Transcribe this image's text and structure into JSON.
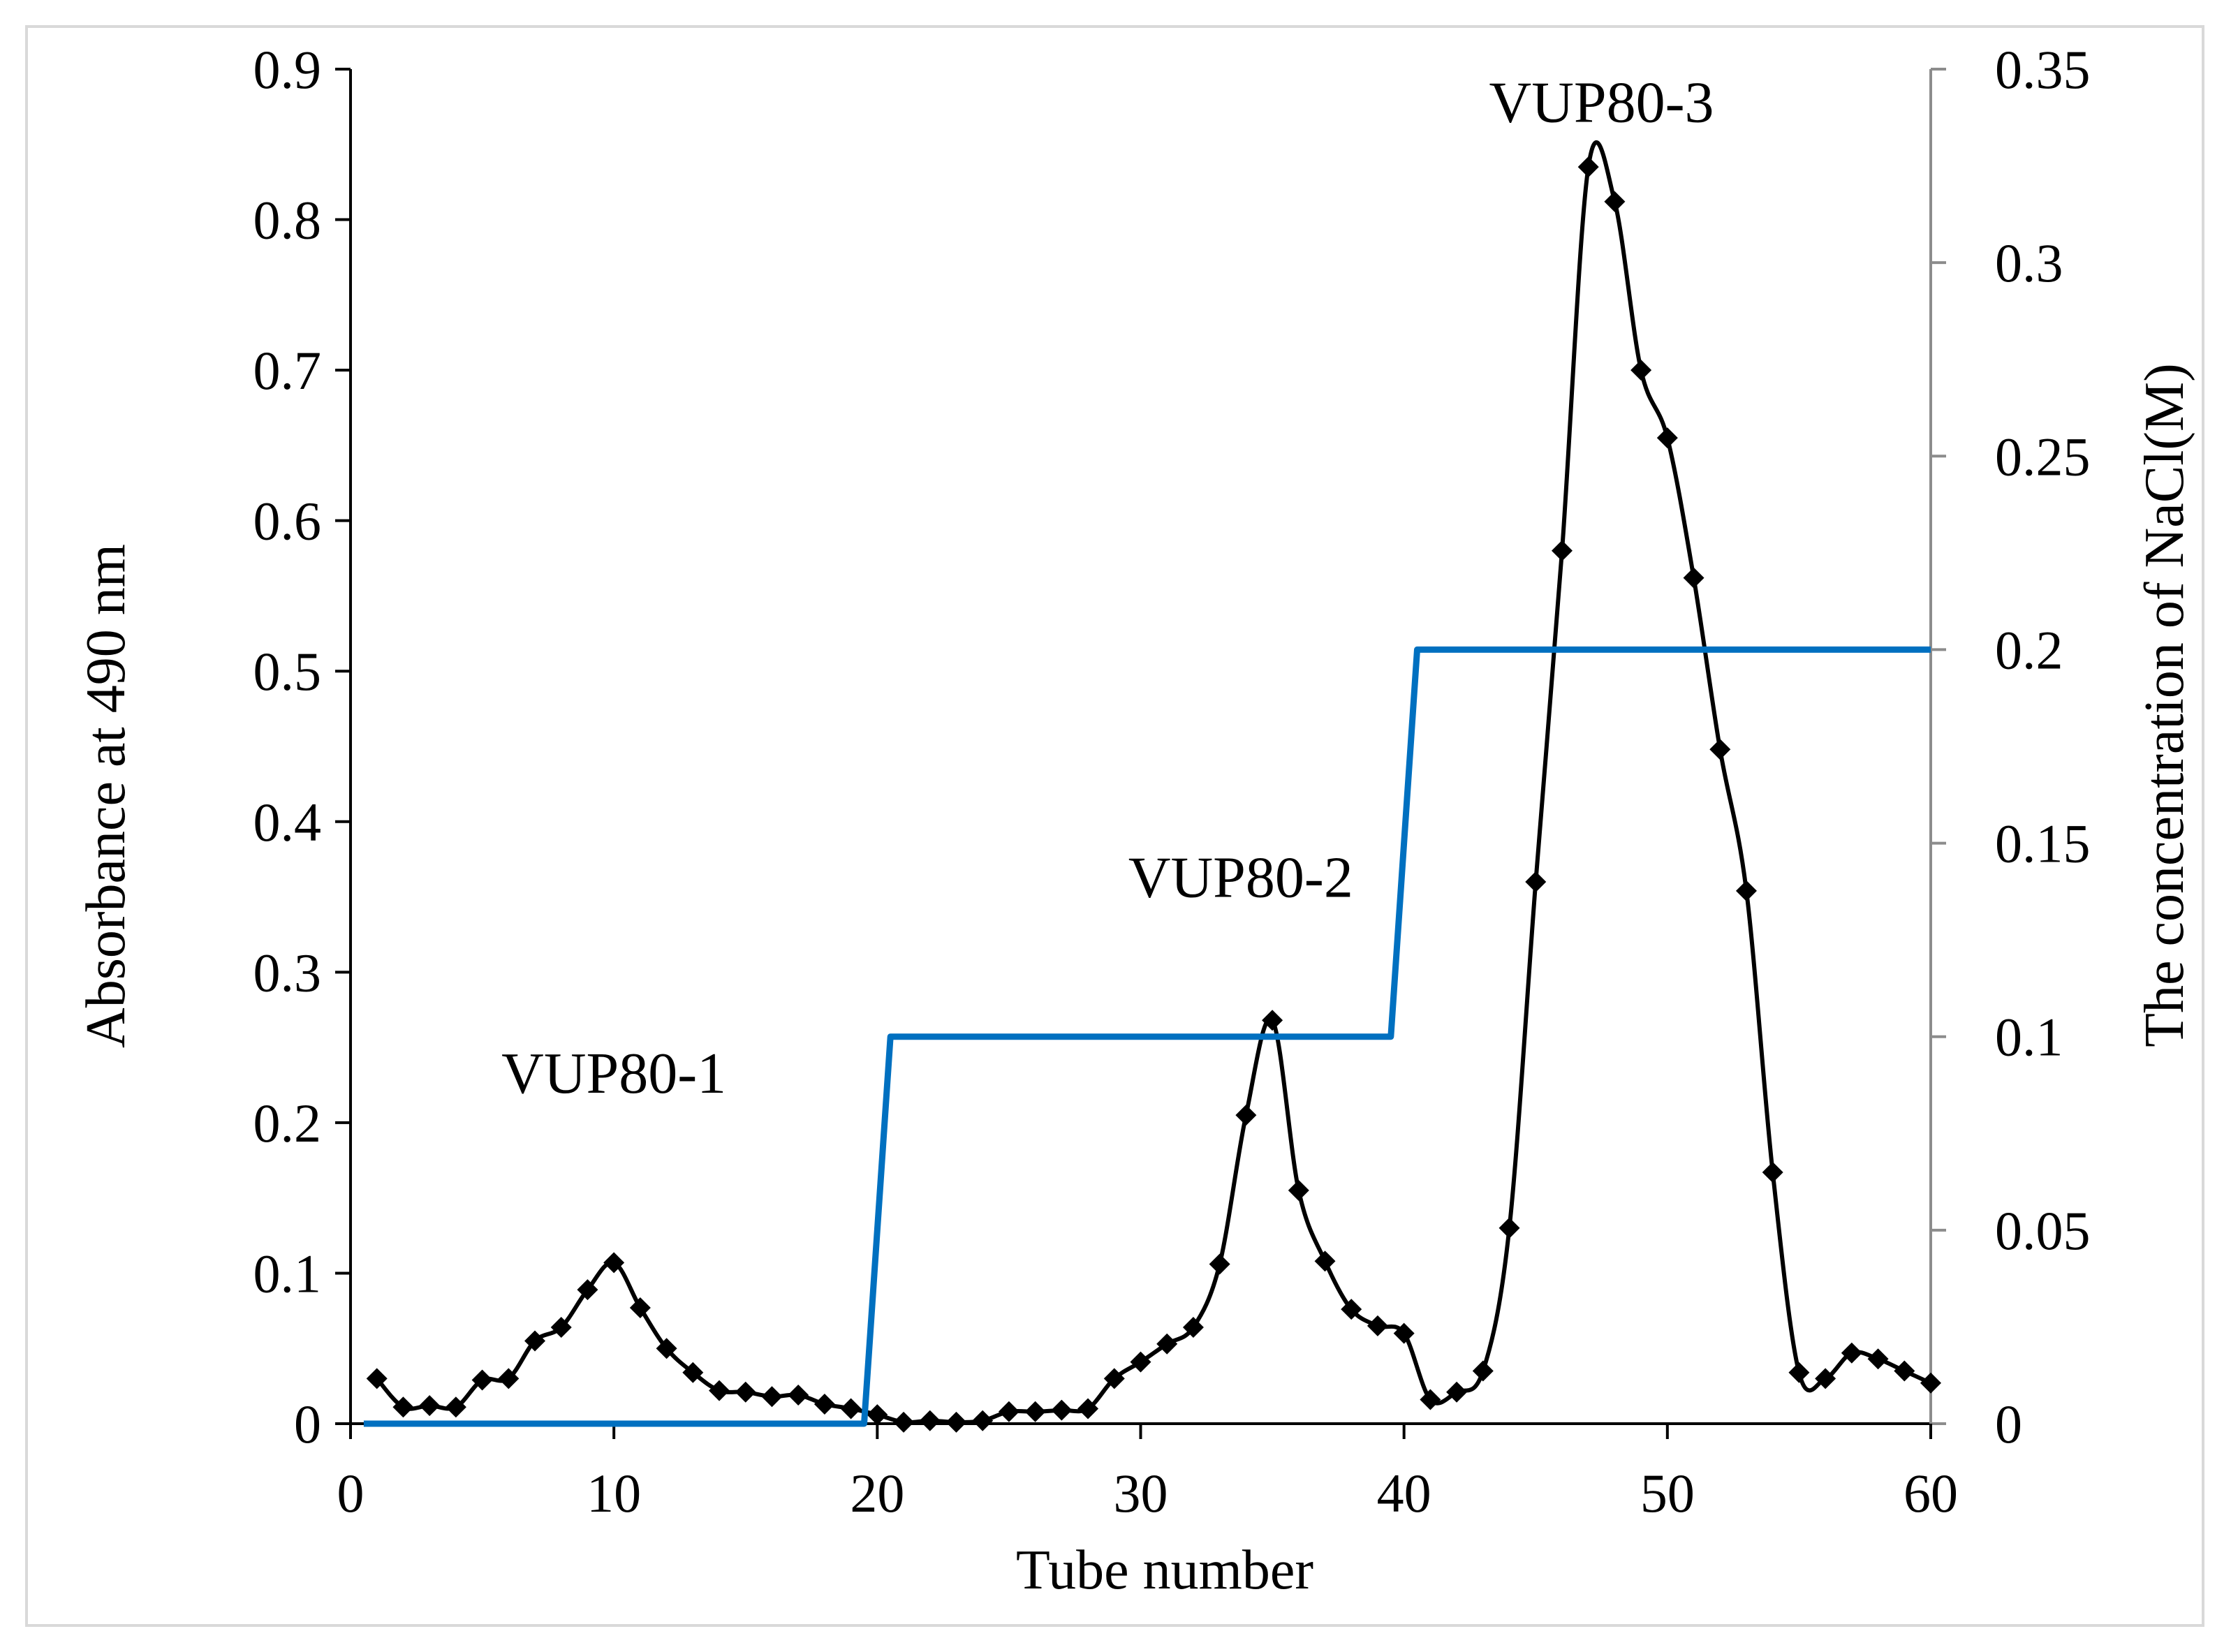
{
  "chart_data": {
    "type": "line",
    "title": "",
    "xlabel": "Tube number",
    "ylabel": "Absorbance at 490 nm",
    "y2label": "The concentration of NaCl(M)",
    "xlim": [
      0,
      60
    ],
    "ylim": [
      0,
      0.9
    ],
    "y2lim": [
      0,
      0.35
    ],
    "x_ticks": [
      "0",
      "10",
      "20",
      "30",
      "40",
      "50",
      "60"
    ],
    "y_ticks": [
      "0",
      "0.1",
      "0.2",
      "0.3",
      "0.4",
      "0.5",
      "0.6",
      "0.7",
      "0.8",
      "0.9"
    ],
    "y2_ticks": [
      "0",
      "0.05",
      "0.1",
      "0.15",
      "0.2",
      "0.25",
      "0.3",
      "0.35"
    ],
    "grid": false,
    "legend": "none",
    "series": [
      {
        "name": "Absorbance at 490 nm",
        "axis": "left",
        "color": "#000000",
        "marker": "diamond",
        "smooth": true,
        "x": [
          1,
          2,
          3,
          4,
          5,
          6,
          7,
          8,
          9,
          10,
          11,
          12,
          13,
          14,
          15,
          16,
          17,
          18,
          19,
          20,
          21,
          22,
          23,
          24,
          25,
          26,
          27,
          28,
          29,
          30,
          31,
          32,
          33,
          34,
          35,
          36,
          37,
          38,
          39,
          40,
          41,
          42,
          43,
          44,
          45,
          46,
          47,
          48,
          49,
          50,
          51,
          52,
          53,
          54,
          55,
          56,
          57,
          58,
          59,
          60
        ],
        "values": [
          0.03,
          0.011,
          0.012,
          0.011,
          0.029,
          0.03,
          0.055,
          0.064,
          0.089,
          0.107,
          0.077,
          0.05,
          0.034,
          0.022,
          0.021,
          0.018,
          0.019,
          0.013,
          0.01,
          0.006,
          0.001,
          0.002,
          0.001,
          0.002,
          0.008,
          0.008,
          0.009,
          0.01,
          0.03,
          0.041,
          0.053,
          0.064,
          0.106,
          0.205,
          0.268,
          0.155,
          0.108,
          0.076,
          0.065,
          0.06,
          0.016,
          0.021,
          0.035,
          0.13,
          0.36,
          0.58,
          0.835,
          0.812,
          0.7,
          0.655,
          0.562,
          0.448,
          0.354,
          0.167,
          0.034,
          0.03,
          0.047,
          0.043,
          0.035,
          0.027
        ]
      },
      {
        "name": "NaCl concentration (M)",
        "axis": "right",
        "color": "#0070c0",
        "marker": "none",
        "smooth": false,
        "x": [
          0.5,
          19.5,
          20.5,
          39.5,
          40.5,
          60
        ],
        "values": [
          0,
          0,
          0.1,
          0.1,
          0.2,
          0.2
        ]
      }
    ],
    "annotations": [
      {
        "text": "VUP80-1",
        "x": 10,
        "y": 0.22
      },
      {
        "text": "VUP80-2",
        "x": 33.8,
        "y": 0.35
      },
      {
        "text": "VUP80-3",
        "x": 47.5,
        "y": 0.865
      }
    ]
  }
}
